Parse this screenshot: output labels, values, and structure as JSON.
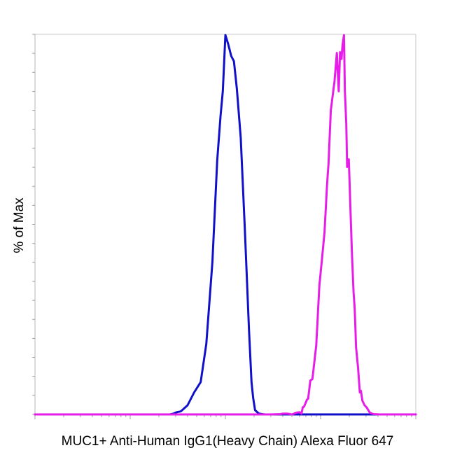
{
  "chart_data": {
    "type": "line",
    "title": "",
    "xlabel": "MUC1+ Anti-Human IgG1(Heavy Chain) Alexa Fluor 647",
    "ylabel": "% of Max",
    "x_scale": "log",
    "xlim": [
      0.1,
      1000
    ],
    "ylim": [
      0,
      100
    ],
    "grid": false,
    "legend": "none",
    "series": [
      {
        "color": "#1010c8",
        "x": [
          0.1,
          1.5,
          2.6,
          2.85,
          3.1,
          3.4,
          4.0,
          4.7,
          5.5,
          6.3,
          7.3,
          7.7,
          8.2,
          8.9,
          9.4,
          10.0,
          10.7,
          11.5,
          12.3,
          13.2,
          14.5,
          16.0,
          17.7,
          18.8,
          19.6,
          20.5,
          22.5,
          26,
          1000
        ],
        "y": [
          0,
          0,
          0,
          0.2,
          0.6,
          0.8,
          2.4,
          5.8,
          8.5,
          18.5,
          40.0,
          52.4,
          66.8,
          78.6,
          85.0,
          99.8,
          97.4,
          94.3,
          92.9,
          85.6,
          72.8,
          48.6,
          22.3,
          8.5,
          4.3,
          1.1,
          0.2,
          0,
          0
        ]
      },
      {
        "color": "#e81ce8",
        "x": [
          0.1,
          30,
          38,
          40,
          45,
          50,
          55,
          60,
          63,
          65,
          67,
          72,
          74,
          78,
          82,
          90,
          97,
          104,
          110,
          117,
          121,
          128,
          140,
          148,
          155,
          160,
          166,
          170,
          176,
          180,
          186,
          190,
          198,
          206,
          214,
          222,
          228,
          236,
          248,
          258,
          265,
          275,
          290,
          305,
          330,
          360,
          420,
          1000
        ],
        "y": [
          0,
          0,
          0.1,
          0.2,
          0.2,
          0,
          0.4,
          0.6,
          0.2,
          1.9,
          2.0,
          3.9,
          4.1,
          8.9,
          9.3,
          18.2,
          33.8,
          41.5,
          47.9,
          60.7,
          65.9,
          80.0,
          87.7,
          95.1,
          85.0,
          95.3,
          93.5,
          97.1,
          99.8,
          85.0,
          76.4,
          65.1,
          67.1,
          53.7,
          41.7,
          32.1,
          27.9,
          17.6,
          12.1,
          5.8,
          6.2,
          3.6,
          2.4,
          1.8,
          0.4,
          0.1,
          0,
          0
        ]
      }
    ]
  }
}
